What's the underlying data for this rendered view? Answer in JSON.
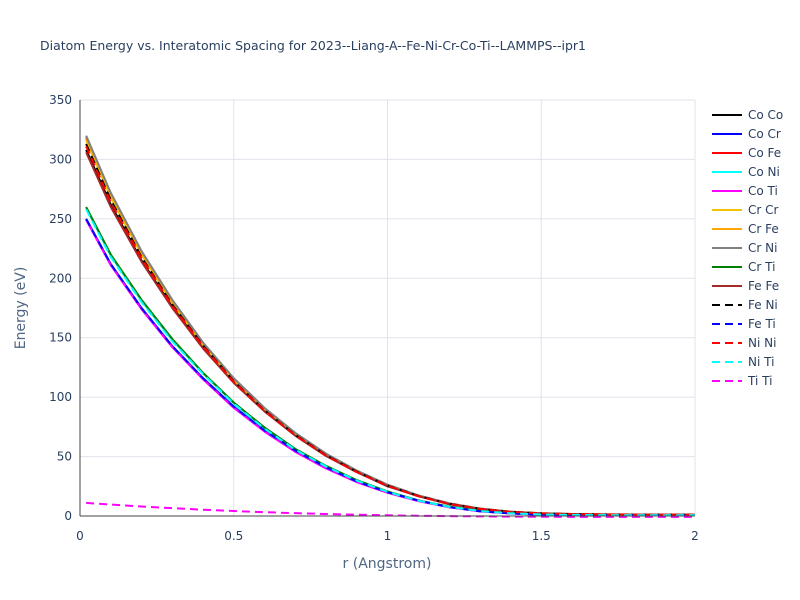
{
  "chart_data": {
    "type": "line",
    "title": "Diatom Energy vs. Interatomic Spacing for 2023--Liang-A--Fe-Ni-Cr-Co-Ti--LAMMPS--ipr1",
    "xlabel": "r (Angstrom)",
    "ylabel": "Energy (eV)",
    "xlim": [
      0,
      2
    ],
    "ylim": [
      0,
      350
    ],
    "xticks": [
      0,
      0.5,
      1,
      1.5,
      2
    ],
    "xtick_labels": [
      "0",
      "0.5",
      "1",
      "1.5",
      "2"
    ],
    "yticks": [
      0,
      50,
      100,
      150,
      200,
      250,
      300,
      350
    ],
    "ytick_labels": [
      "0",
      "50",
      "100",
      "150",
      "200",
      "250",
      "300",
      "350"
    ],
    "grid": true,
    "legend_position": "right",
    "x": [
      0.02,
      0.1,
      0.2,
      0.3,
      0.4,
      0.5,
      0.6,
      0.7,
      0.8,
      0.9,
      1.0,
      1.1,
      1.2,
      1.3,
      1.4,
      1.5,
      1.6,
      1.7,
      1.8,
      1.9,
      2.0
    ],
    "series": [
      {
        "name": "Co Co",
        "color": "#000000",
        "dash": "solid",
        "values": [
          308,
          262,
          215,
          176,
          142,
          113,
          89,
          68,
          51,
          37,
          25,
          17,
          10,
          6,
          3.5,
          2.2,
          1.6,
          1.3,
          1.2,
          1.2,
          1.2
        ]
      },
      {
        "name": "Co Cr",
        "color": "#0000ff",
        "dash": "solid",
        "values": [
          250,
          212,
          175,
          143,
          116,
          92,
          72,
          55,
          41,
          29,
          20,
          13,
          7.5,
          4,
          2.2,
          1.2,
          0.8,
          0.6,
          0.5,
          0.5,
          0.5
        ]
      },
      {
        "name": "Co Fe",
        "color": "#ff0000",
        "dash": "solid",
        "values": [
          318,
          270,
          221,
          180,
          145,
          115,
          90,
          69,
          52,
          38,
          26,
          17,
          10.5,
          6.2,
          3.6,
          2.3,
          1.7,
          1.4,
          1.3,
          1.3,
          1.3
        ]
      },
      {
        "name": "Co Ni",
        "color": "#00ffff",
        "dash": "solid",
        "values": [
          259,
          219,
          181,
          148,
          120,
          95,
          74,
          56,
          42,
          30,
          20.5,
          13,
          7.8,
          4.3,
          2.4,
          1.4,
          0.9,
          0.7,
          0.6,
          0.6,
          0.6
        ]
      },
      {
        "name": "Co Ti",
        "color": "#ff00ff",
        "dash": "solid",
        "values": [
          249,
          211,
          174,
          142,
          115,
          91,
          71,
          54,
          40,
          28.5,
          19.5,
          12.5,
          7.3,
          3.9,
          2.1,
          1.1,
          0.7,
          0.5,
          0.4,
          0.4,
          0.4
        ]
      },
      {
        "name": "Cr Cr",
        "color": "#f2c200",
        "dash": "solid",
        "values": [
          316,
          268,
          220,
          179,
          144,
          114,
          89.5,
          68.5,
          51.5,
          37.5,
          25.8,
          17,
          10.4,
          6.1,
          3.5,
          2.2,
          1.6,
          1.3,
          1.2,
          1.2,
          1.2
        ]
      },
      {
        "name": "Cr Fe",
        "color": "#ffa500",
        "dash": "solid",
        "values": [
          319,
          271,
          222,
          181,
          145.5,
          115.5,
          90.5,
          69.5,
          52.2,
          38,
          26.2,
          17.3,
          10.6,
          6.3,
          3.6,
          2.3,
          1.7,
          1.4,
          1.3,
          1.3,
          1.3
        ]
      },
      {
        "name": "Cr Ni",
        "color": "#808080",
        "dash": "solid",
        "values": [
          320,
          272,
          223,
          182,
          146,
          116,
          91,
          70,
          52.5,
          38.3,
          26.4,
          17.4,
          10.7,
          6.3,
          3.7,
          2.3,
          1.7,
          1.4,
          1.3,
          1.3,
          1.3
        ]
      },
      {
        "name": "Cr Ti",
        "color": "#008000",
        "dash": "solid",
        "values": [
          260,
          220,
          182,
          149,
          120.5,
          95.5,
          74.5,
          56.5,
          42.2,
          30.2,
          20.7,
          13.2,
          7.9,
          4.4,
          2.4,
          1.4,
          0.9,
          0.7,
          0.6,
          0.6,
          0.6
        ]
      },
      {
        "name": "Fe Fe",
        "color": "#a52a2a",
        "dash": "solid",
        "values": [
          306,
          260,
          214,
          175,
          141,
          112,
          88,
          67.5,
          50.5,
          36.8,
          25.2,
          16.6,
          10.1,
          5.9,
          3.4,
          2.1,
          1.5,
          1.2,
          1.1,
          1.1,
          1.1
        ]
      },
      {
        "name": "Fe Ni",
        "color": "#000000",
        "dash": "dash",
        "values": [
          313,
          266,
          218,
          178,
          143.5,
          113.5,
          89,
          68.3,
          51.3,
          37.3,
          25.6,
          16.9,
          10.3,
          6.1,
          3.5,
          2.2,
          1.6,
          1.3,
          1.2,
          1.2,
          1.2
        ]
      },
      {
        "name": "Fe Ti",
        "color": "#0000ff",
        "dash": "dash",
        "values": [
          250,
          212,
          175,
          143,
          116,
          92,
          72,
          55,
          41,
          29,
          20,
          13,
          7.5,
          4,
          2.2,
          1.2,
          0.8,
          0.6,
          0.5,
          0.5,
          0.5
        ]
      },
      {
        "name": "Ni Ni",
        "color": "#ff0000",
        "dash": "dash",
        "values": [
          311,
          264,
          217,
          177,
          143,
          113,
          88.7,
          68,
          51,
          37,
          25.4,
          16.7,
          10.2,
          6,
          3.5,
          2.2,
          1.6,
          1.3,
          1.2,
          1.2,
          1.2
        ]
      },
      {
        "name": "Ni Ti",
        "color": "#00ffff",
        "dash": "dash",
        "values": [
          258,
          218,
          180,
          147,
          119.5,
          94.5,
          73.5,
          55.8,
          41.7,
          29.8,
          20.3,
          12.9,
          7.7,
          4.2,
          2.3,
          1.3,
          0.9,
          0.7,
          0.6,
          0.6,
          0.6
        ]
      },
      {
        "name": "Ti Ti",
        "color": "#ff00ff",
        "dash": "dash",
        "values": [
          11,
          9.6,
          8.0,
          6.6,
          5.3,
          4.2,
          3.2,
          2.4,
          1.7,
          1.1,
          0.6,
          0.2,
          -0.1,
          -0.3,
          -0.5,
          -0.6,
          -0.7,
          -0.7,
          -0.7,
          -0.7,
          -0.7
        ]
      }
    ]
  }
}
